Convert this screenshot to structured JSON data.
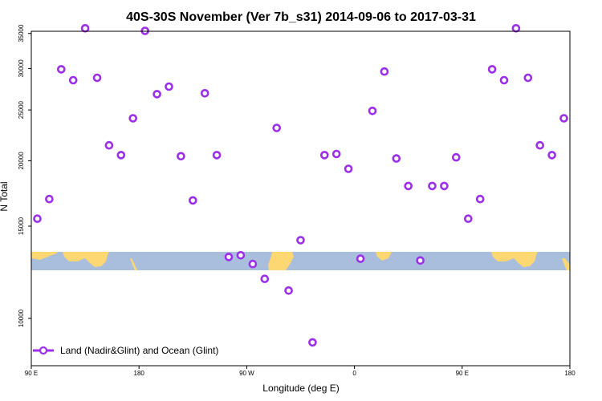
{
  "chart_data": {
    "type": "scatter",
    "title": "40S-30S November (Ver 7b_s31)   2014-09-06 to 2017-03-31",
    "xlabel": "Longitude (deg E)",
    "ylabel": "N Total",
    "x_tick_labels": [
      "90 E",
      "180",
      "90 W",
      "0",
      "90 E",
      "180"
    ],
    "y_tick_labels": [
      "10000",
      "15000",
      "20000",
      "25000",
      "30000",
      "35000"
    ],
    "y_scale": "log",
    "series": [
      {
        "name": "Land (Nadir&Glint) and Ocean (Glint)",
        "color": "#9b30e8",
        "marker": "open-circle",
        "points": [
          [
            95,
            15500
          ],
          [
            105,
            16900
          ],
          [
            115,
            29900
          ],
          [
            125,
            28500
          ],
          [
            135,
            35800
          ],
          [
            145,
            28800
          ],
          [
            155,
            21400
          ],
          [
            165,
            20500
          ],
          [
            175,
            24100
          ],
          [
            185,
            35400
          ],
          [
            195,
            26800
          ],
          [
            205,
            27700
          ],
          [
            215,
            20400
          ],
          [
            225,
            16800
          ],
          [
            235,
            26900
          ],
          [
            245,
            20500
          ],
          [
            255,
            13100
          ],
          [
            265,
            13200
          ],
          [
            275,
            12700
          ],
          [
            285,
            11900
          ],
          [
            295,
            23100
          ],
          [
            305,
            11300
          ],
          [
            315,
            14100
          ],
          [
            325,
            9000
          ],
          [
            335,
            20500
          ],
          [
            345,
            20600
          ],
          [
            355,
            19300
          ],
          [
            365,
            13000
          ],
          [
            375,
            24900
          ],
          [
            385,
            29600
          ],
          [
            395,
            20200
          ],
          [
            405,
            17900
          ],
          [
            415,
            12900
          ],
          [
            425,
            17900
          ],
          [
            435,
            17900
          ],
          [
            445,
            20300
          ],
          [
            455,
            15500
          ],
          [
            465,
            16900
          ],
          [
            475,
            29900
          ],
          [
            485,
            28500
          ],
          [
            495,
            35800
          ],
          [
            505,
            28800
          ],
          [
            515,
            21400
          ],
          [
            525,
            20500
          ],
          [
            535,
            24100
          ]
        ]
      }
    ],
    "legend_position": "bottom-left",
    "grid": false,
    "map_strip": {
      "ocean_color": "#a9bddd",
      "land_color": "#fdd772"
    }
  }
}
